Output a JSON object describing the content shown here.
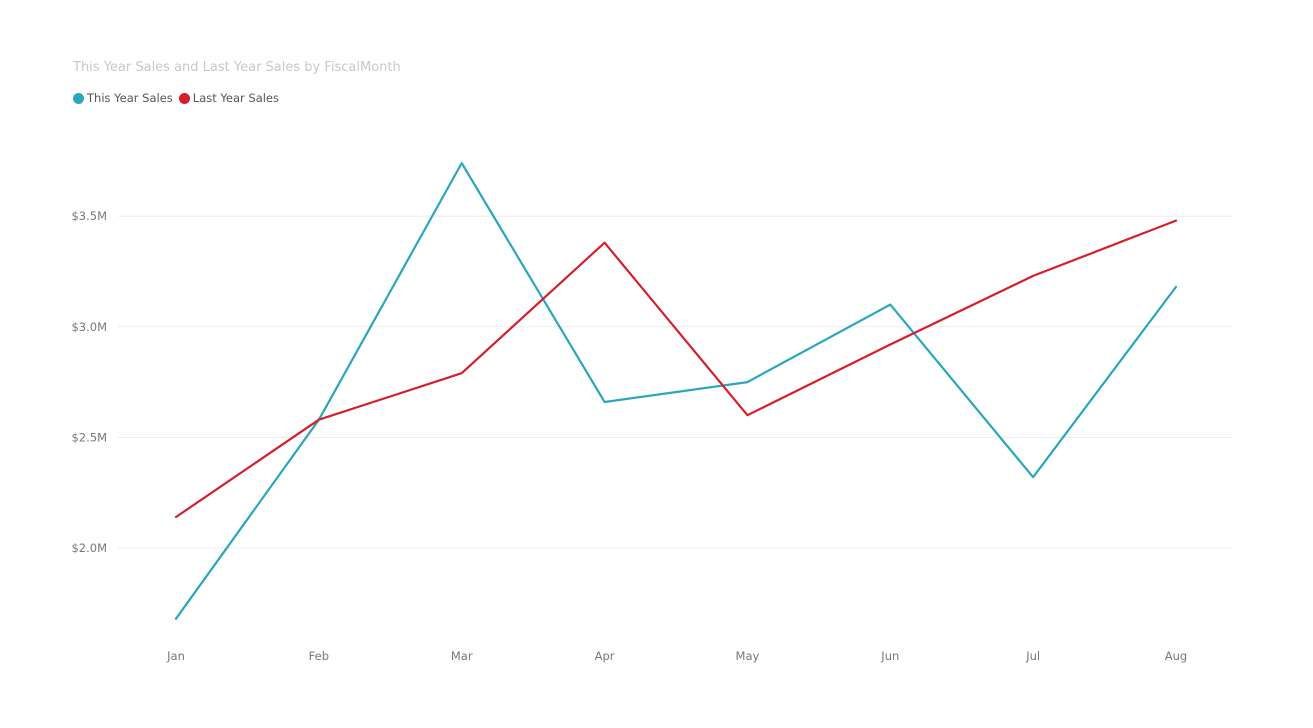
{
  "chart_data": {
    "type": "line",
    "title": "This Year Sales and Last Year Sales by FiscalMonth",
    "categories": [
      "Jan",
      "Feb",
      "Mar",
      "Apr",
      "May",
      "Jun",
      "Jul",
      "Aug"
    ],
    "series": [
      {
        "name": "This Year Sales",
        "color": "#2BA6BF",
        "values": [
          1.68,
          2.58,
          3.74,
          2.66,
          2.75,
          3.1,
          2.32,
          3.18
        ]
      },
      {
        "name": "Last Year Sales",
        "color": "#D4202C",
        "values": [
          2.14,
          2.58,
          2.79,
          3.38,
          2.6,
          2.92,
          3.23,
          3.48
        ]
      }
    ],
    "value_unit": "$M",
    "y_ticks": [
      {
        "value": 2.0,
        "label": "$2.0M"
      },
      {
        "value": 2.5,
        "label": "$2.5M"
      },
      {
        "value": 3.0,
        "label": "$3.0M"
      },
      {
        "value": 3.5,
        "label": "$3.5M"
      }
    ],
    "ylim": [
      1.62,
      3.98
    ],
    "grid": true,
    "legend_position": "top-left",
    "xlabel": "",
    "ylabel": ""
  }
}
